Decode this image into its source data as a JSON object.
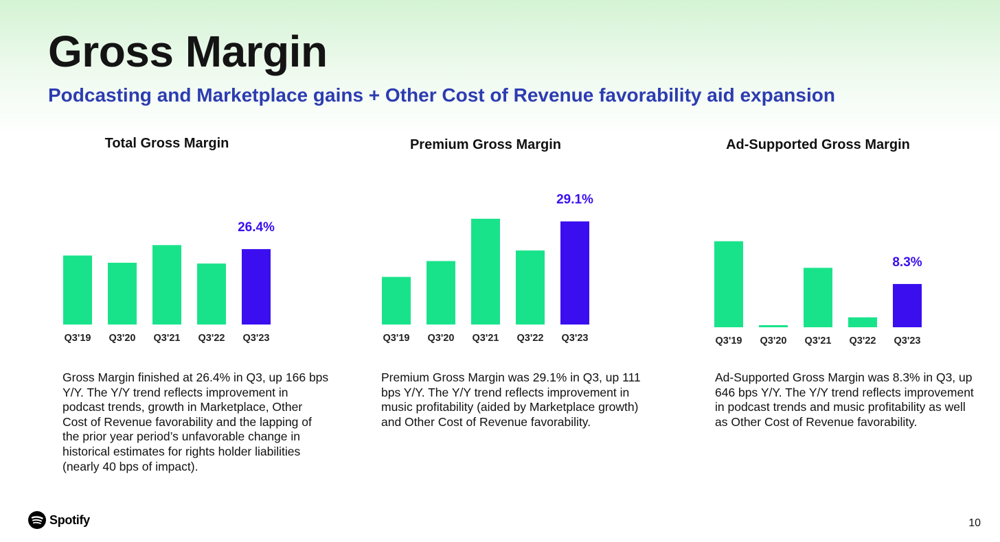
{
  "header": {
    "title": "Gross Margin",
    "subtitle": "Podcasting and Marketplace gains + Other Cost of Revenue favorability aid expansion"
  },
  "colors": {
    "bar": "#19e38a",
    "highlight": "#3b0ef0",
    "subtitle": "#2c3cb0",
    "label": "#3b0ef0"
  },
  "chart_data": [
    {
      "type": "bar",
      "title": "Total Gross Margin",
      "categories": [
        "Q3'19",
        "Q3'20",
        "Q3'21",
        "Q3'22",
        "Q3'23"
      ],
      "values": [
        25.6,
        24.7,
        26.9,
        24.6,
        26.4
      ],
      "highlight_index": 4,
      "data_labels": [
        "",
        "",
        "",
        "",
        "26.4%"
      ],
      "ylim": [
        17,
        30
      ]
    },
    {
      "type": "bar",
      "title": "Premium Gross Margin",
      "categories": [
        "Q3'19",
        "Q3'20",
        "Q3'21",
        "Q3'22",
        "Q3'23"
      ],
      "values": [
        27.0,
        27.6,
        29.2,
        28.0,
        29.1
      ],
      "highlight_index": 4,
      "data_labels": [
        "",
        "",
        "",
        "",
        "29.1%"
      ],
      "ylim": [
        25.2,
        30
      ]
    },
    {
      "type": "bar",
      "title": "Ad-Supported Gross Margin",
      "categories": [
        "Q3'19",
        "Q3'20",
        "Q3'21",
        "Q3'22",
        "Q3'23"
      ],
      "values": [
        16.5,
        0.4,
        11.4,
        1.9,
        8.3
      ],
      "highlight_index": 4,
      "data_labels": [
        "",
        "",
        "",
        "",
        "8.3%"
      ],
      "ylim": [
        0,
        25
      ]
    }
  ],
  "descriptions": [
    "Gross Margin finished at 26.4% in Q3, up 166 bps Y/Y. The Y/Y trend reflects improvement in podcast trends, growth in Marketplace, Other Cost of Revenue favorability and the lapping of the prior year period’s unfavorable change in historical estimates for rights holder liabilities (nearly 40 bps of impact).",
    "Premium Gross Margin was 29.1% in Q3, up 111 bps Y/Y. The Y/Y trend reflects improvement in music profitability (aided by Marketplace growth) and Other Cost of Revenue favorability.",
    "Ad-Supported Gross Margin was 8.3% in Q3, up 646 bps Y/Y. The Y/Y trend reflects improvement in podcast trends and music profitability as well as Other Cost of Revenue favorability."
  ],
  "footer": {
    "logo_text": "Spotify",
    "page_number": "10"
  }
}
